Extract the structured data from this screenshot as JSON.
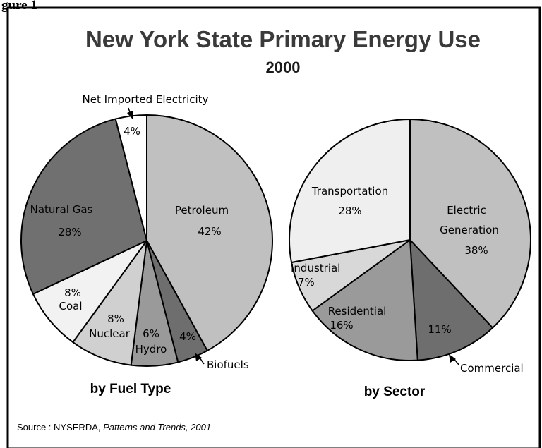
{
  "figure_label": "gure 1",
  "chart_data": [
    {
      "type": "pie",
      "title": "New York State Primary Energy Use",
      "subtitle": "2000",
      "caption": "by Fuel Type",
      "categories": [
        "Petroleum",
        "Biofuels",
        "Hydro",
        "Nuclear",
        "Coal",
        "Natural Gas",
        "Net Imported Electricity"
      ],
      "values": [
        42,
        4,
        6,
        8,
        8,
        28,
        4
      ],
      "value_labels": [
        "42%",
        "4%",
        "6%",
        "8%",
        "8%",
        "28%",
        "4%"
      ],
      "colors": [
        "#c0c0c0",
        "#6e6e6e",
        "#9a9a9a",
        "#d0d0d0",
        "#f2f2f2",
        "#707070",
        "#ffffff"
      ]
    },
    {
      "type": "pie",
      "caption": "by Sector",
      "categories": [
        "Electric Generation",
        "Commercial",
        "Residential",
        "Industrial",
        "Transportation"
      ],
      "values": [
        38,
        11,
        16,
        7,
        28
      ],
      "value_labels": [
        "38%",
        "11%",
        "16%",
        "7%",
        "28%"
      ],
      "colors": [
        "#c0c0c0",
        "#6e6e6e",
        "#9a9a9a",
        "#d8d8d8",
        "#efefef"
      ]
    }
  ],
  "source": {
    "prefix": "Source : NYSERDA, ",
    "italic": "Patterns and Trends, 2001"
  }
}
